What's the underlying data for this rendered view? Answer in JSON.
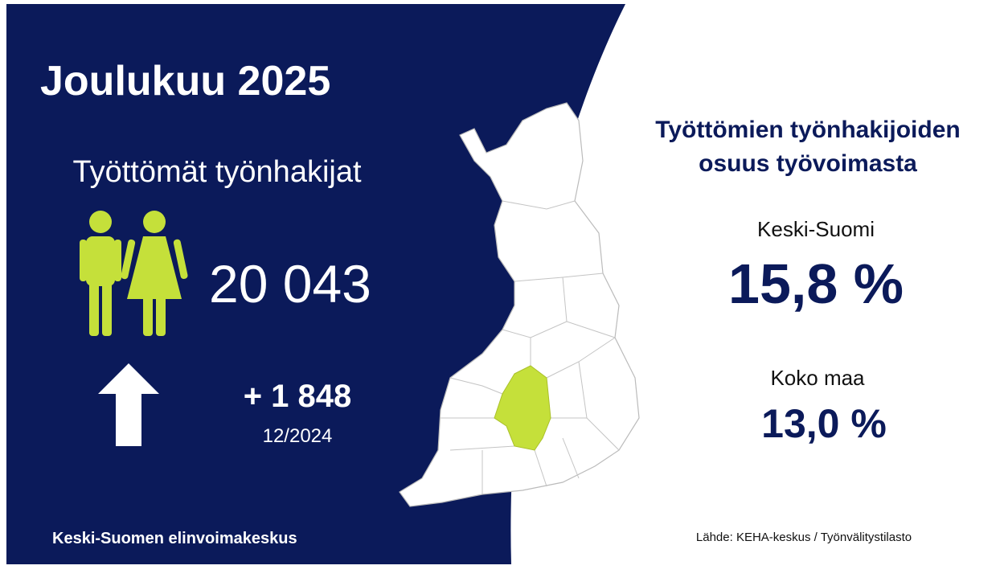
{
  "title": "Joulukuu 2025",
  "subtitle": "Työttömät työnhakijat",
  "count": "20 043",
  "change": "+ 1 848",
  "change_period": "12/2024",
  "organization": "Keski-Suomen elinvoimakeskus",
  "share_heading": [
    "Työttömien työnhakijoiden",
    "osuus työvoimasta"
  ],
  "region": {
    "label": "Keski-Suomi",
    "value": "15,8 %"
  },
  "national": {
    "label": "Koko maa",
    "value": "13,0 %"
  },
  "source": "Lähde: KEHA-keskus / Työnvälitystilasto"
}
